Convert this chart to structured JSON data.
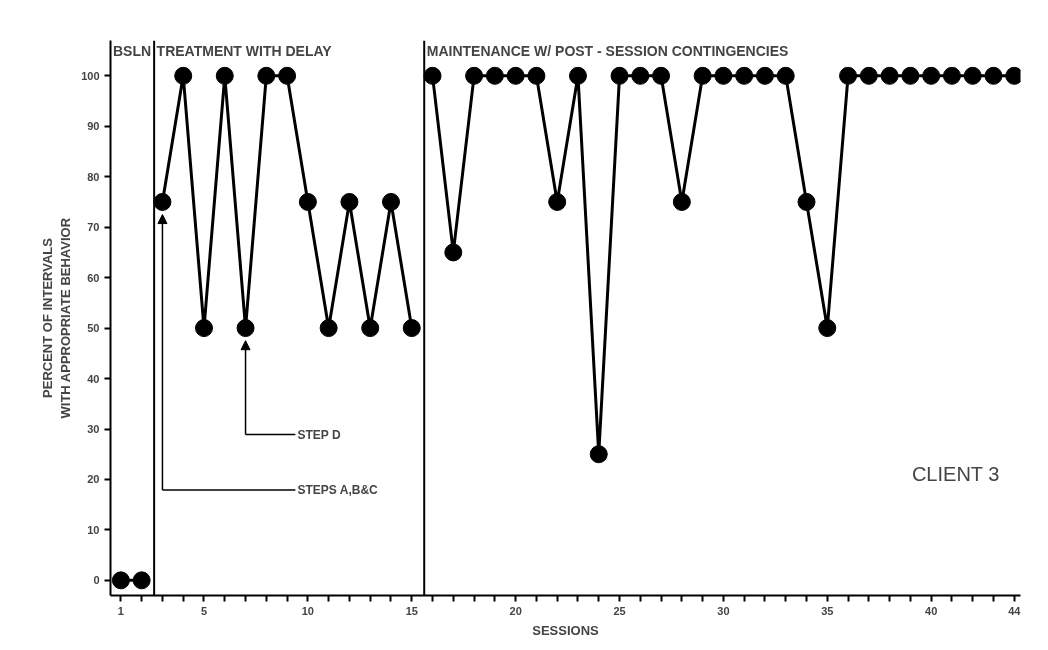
{
  "chart_data": {
    "type": "line",
    "xlabel": "SESSIONS",
    "ylabel": "PERCENT OF INTERVALS\nWITH APPROPRIATE BEHAVIOR",
    "series": [
      {
        "color": "#000000",
        "x": [
          1,
          2
        ],
        "values": [
          0,
          0
        ]
      },
      {
        "color": "#000000",
        "x": [
          3,
          4,
          5,
          6,
          7,
          8,
          9,
          10,
          11,
          12,
          13,
          14,
          15
        ],
        "values": [
          75,
          100,
          50,
          100,
          50,
          100,
          100,
          75,
          50,
          75,
          50,
          75,
          50
        ]
      },
      {
        "color": "#000000",
        "x": [
          16,
          17,
          18,
          19,
          20,
          21,
          22,
          23,
          24,
          25,
          26,
          27,
          28,
          29,
          30,
          31,
          32,
          33,
          34,
          35,
          36,
          37,
          38,
          39,
          40,
          41,
          42,
          43,
          44
        ],
        "values": [
          100,
          65,
          100,
          100,
          100,
          100,
          75,
          100,
          25,
          100,
          100,
          100,
          75,
          100,
          100,
          100,
          100,
          100,
          75,
          50,
          100,
          100,
          100,
          100,
          100,
          100,
          100,
          100,
          100
        ]
      }
    ],
    "xlim": [
      0.5,
      44.3
    ],
    "ylim": [
      -3,
      107
    ],
    "xticks": [
      1,
      {
        "value": 2,
        "label": null
      },
      {
        "value": 3,
        "label": null
      },
      {
        "value": 4,
        "label": null
      },
      5,
      {
        "value": 6,
        "label": null
      },
      {
        "value": 7,
        "label": null
      },
      {
        "value": 8,
        "label": null
      },
      {
        "value": 9,
        "label": null
      },
      10,
      {
        "value": 11,
        "label": null
      },
      {
        "value": 12,
        "label": null
      },
      {
        "value": 13,
        "label": null
      },
      {
        "value": 14,
        "label": null
      },
      15,
      {
        "value": 16,
        "label": null
      },
      {
        "value": 17,
        "label": null
      },
      {
        "value": 18,
        "label": null
      },
      {
        "value": 19,
        "label": null
      },
      20,
      {
        "value": 21,
        "label": null
      },
      {
        "value": 22,
        "label": null
      },
      {
        "value": 23,
        "label": null
      },
      {
        "value": 24,
        "label": null
      },
      25,
      {
        "value": 26,
        "label": null
      },
      {
        "value": 27,
        "label": null
      },
      {
        "value": 28,
        "label": null
      },
      {
        "value": 29,
        "label": null
      },
      30,
      {
        "value": 31,
        "label": null
      },
      {
        "value": 32,
        "label": null
      },
      {
        "value": 33,
        "label": null
      },
      {
        "value": 34,
        "label": null
      },
      35,
      {
        "value": 36,
        "label": null
      },
      {
        "value": 37,
        "label": null
      },
      {
        "value": 38,
        "label": null
      },
      {
        "value": 39,
        "label": null
      },
      40,
      {
        "value": 41,
        "label": null
      },
      {
        "value": 42,
        "label": null
      },
      {
        "value": 43,
        "label": null
      },
      44
    ],
    "yticks": [
      0,
      10,
      20,
      30,
      40,
      50,
      60,
      70,
      80,
      90,
      100
    ],
    "ref_lines": [
      {
        "axis": "x",
        "value": 2.6,
        "color": "#000000"
      },
      {
        "axis": "x",
        "value": 15.6,
        "color": "#000000"
      }
    ],
    "annotations": [
      "BSLN",
      "TREATMENT WITH DELAY",
      "MAINTENANCE W/ POST - SESSION CONTINGENCIES",
      "CLIENT 3",
      "STEP D",
      "STEPS A,B&C"
    ],
    "marker": "circle",
    "line_style": "solid",
    "grid": false
  }
}
